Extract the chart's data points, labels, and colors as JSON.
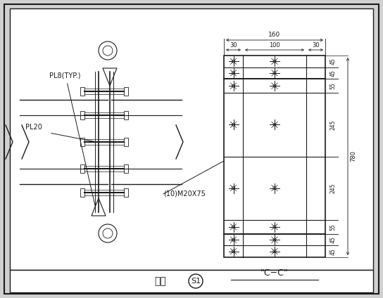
{
  "bg_color": "#d0d0d0",
  "inner_bg": "#ffffff",
  "line_color": "#1a1a1a",
  "title_text": "节点",
  "node_label": "S1",
  "section_label": "\"C−C\"",
  "bolt_label": "(10)M20X75",
  "pl8_label": "PL8(TYP.)",
  "pl20_label": "PL20",
  "dim_160": "160",
  "dim_30_left": "30",
  "dim_100": "100",
  "dim_30_right": "30",
  "dim_45": "45",
  "dim_55": "55",
  "dim_245": "245",
  "dim_780": "780",
  "seg_mms": [
    45,
    45,
    55,
    245,
    245,
    55,
    45,
    45
  ],
  "seg_labels": [
    "45",
    "45",
    "55",
    "245",
    "245",
    "55",
    "45",
    "45"
  ]
}
